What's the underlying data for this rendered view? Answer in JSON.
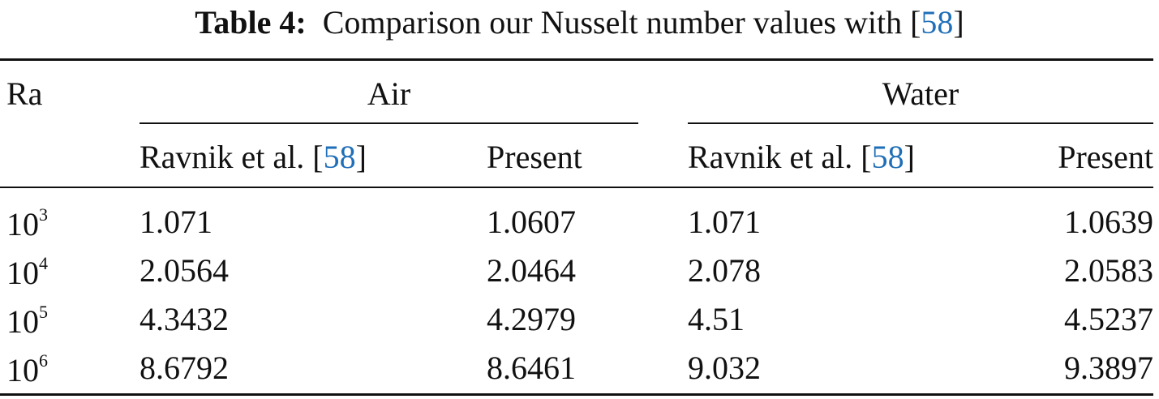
{
  "caption": {
    "label": "Table 4:",
    "text": [
      "Comparison our Nusselt number values with [",
      "58",
      "]"
    ]
  },
  "header": {
    "ra": "Ra",
    "groups": [
      "Air",
      "Water"
    ],
    "subheaders": [
      [
        "Ravnik et al. [",
        "58",
        "]"
      ],
      [
        "Present"
      ],
      [
        "Ravnik et al. [",
        "58",
        "]"
      ],
      [
        "Present"
      ]
    ]
  },
  "table": {
    "rows": [
      {
        "ra": {
          "base": 10,
          "exponent": 3
        },
        "values": [
          1.071,
          1.0607,
          1.071,
          1.0639
        ]
      },
      {
        "ra": {
          "base": 10,
          "exponent": 4
        },
        "values": [
          2.0564,
          2.0464,
          2.078,
          2.0583
        ]
      },
      {
        "ra": {
          "base": 10,
          "exponent": 5
        },
        "values": [
          4.3432,
          4.2979,
          4.51,
          4.5237
        ]
      },
      {
        "ra": {
          "base": 10,
          "exponent": 6
        },
        "values": [
          8.6792,
          8.6461,
          9.032,
          9.3897
        ]
      }
    ]
  }
}
